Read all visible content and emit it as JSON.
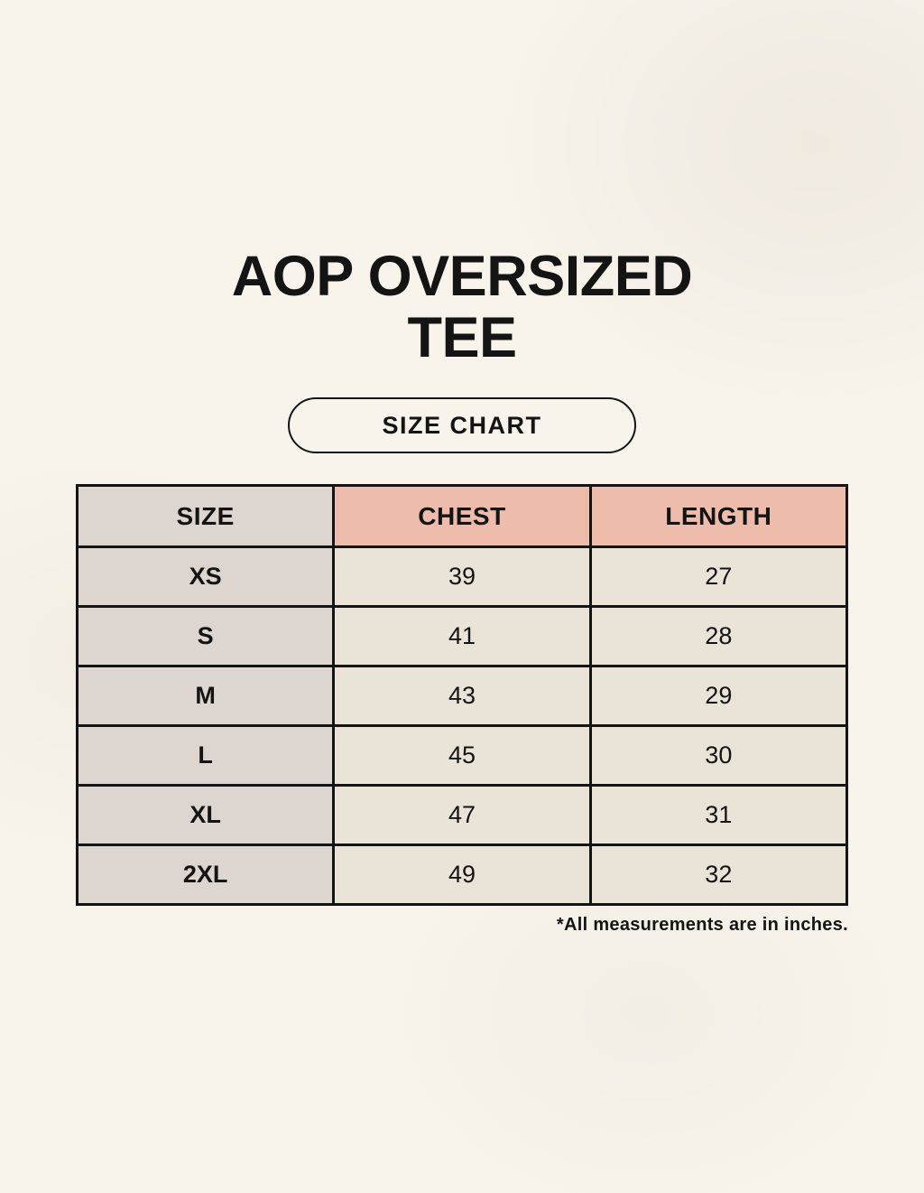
{
  "page": {
    "title_line1": "AOP OVERSIZED",
    "title_line2": "TEE",
    "size_chart_label": "SIZE CHART",
    "footnote": "*All measurements are in inches."
  },
  "table": {
    "columns": [
      "SIZE",
      "CHEST",
      "LENGTH"
    ],
    "rows": [
      {
        "size": "XS",
        "chest": "39",
        "length": "27"
      },
      {
        "size": "S",
        "chest": "41",
        "length": "28"
      },
      {
        "size": "M",
        "chest": "43",
        "length": "29"
      },
      {
        "size": "L",
        "chest": "45",
        "length": "30"
      },
      {
        "size": "XL",
        "chest": "47",
        "length": "31"
      },
      {
        "size": "2XL",
        "chest": "49",
        "length": "32"
      }
    ],
    "units": "inches"
  },
  "colors": {
    "background": "#f8f4ec",
    "header_accent": "#edbcab",
    "size_column_bg": "#ddd6d0",
    "cell_bg": "#e9e3d8",
    "border": "#141414",
    "text": "#141414"
  }
}
